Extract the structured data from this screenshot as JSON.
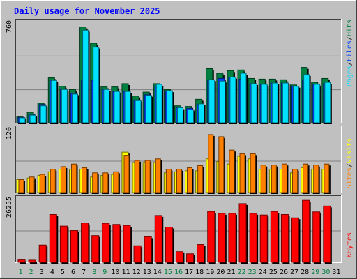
{
  "title": "Daily usage for November 2025",
  "colors": {
    "background": "#c0c0c0",
    "title": "#0000ff",
    "hits": "#008040",
    "files": "#0040ff",
    "pages": "#00e0ff",
    "visits": "#ffff00",
    "sites": "#ff8000",
    "kbytes": "#ff0000",
    "weekend_label": "#008040",
    "weekday_label": "#000000",
    "gridline": "#808080"
  },
  "chart_data": [
    {
      "type": "bar",
      "title": "Daily usage for November 2025",
      "ymax_label": "760",
      "ylim": [
        0,
        760
      ],
      "legend": [
        "Pages",
        "Files",
        "Hits"
      ],
      "series": [
        {
          "name": "Hits",
          "values": [
            45,
            80,
            150,
            345,
            280,
            255,
            735,
            610,
            275,
            275,
            300,
            205,
            235,
            300,
            255,
            130,
            125,
            180,
            415,
            380,
            400,
            405,
            340,
            335,
            335,
            330,
            290,
            425,
            310,
            340,
            0
          ]
        },
        {
          "name": "Files",
          "values": [
            40,
            60,
            140,
            325,
            260,
            225,
            325,
            325,
            255,
            240,
            240,
            175,
            215,
            280,
            245,
            115,
            110,
            140,
            330,
            340,
            350,
            335,
            300,
            295,
            305,
            305,
            280,
            330,
            295,
            300,
            0
          ]
        },
        {
          "name": "Pages",
          "values": [
            38,
            58,
            130,
            325,
            255,
            220,
            710,
            580,
            255,
            240,
            240,
            170,
            210,
            295,
            245,
            115,
            100,
            145,
            330,
            320,
            350,
            380,
            300,
            295,
            305,
            305,
            280,
            370,
            295,
            310,
            0
          ]
        }
      ],
      "categories": [
        "1",
        "2",
        "3",
        "4",
        "5",
        "6",
        "7",
        "8",
        "9",
        "10",
        "11",
        "12",
        "13",
        "14",
        "15",
        "16",
        "17",
        "18",
        "19",
        "20",
        "21",
        "22",
        "23",
        "24",
        "25",
        "26",
        "27",
        "28",
        "29",
        "30",
        "31"
      ]
    },
    {
      "type": "bar",
      "ymax_label": "120",
      "ylim": [
        0,
        120
      ],
      "legend": [
        "Sites",
        "Visits"
      ],
      "series": [
        {
          "name": "Visits",
          "values": [
            25,
            28,
            33,
            40,
            45,
            45,
            45,
            30,
            33,
            35,
            78,
            58,
            58,
            58,
            38,
            40,
            42,
            42,
            65,
            60,
            55,
            70,
            65,
            45,
            45,
            45,
            38,
            48,
            45,
            45,
            0
          ]
        },
        {
          "name": "Sites",
          "values": [
            25,
            30,
            35,
            45,
            50,
            55,
            48,
            38,
            38,
            40,
            72,
            62,
            62,
            65,
            45,
            45,
            48,
            52,
            112,
            108,
            82,
            75,
            75,
            53,
            53,
            55,
            45,
            55,
            53,
            55,
            0
          ]
        }
      ]
    },
    {
      "type": "bar",
      "ymax_label": "26255",
      "ylim": [
        0,
        26255
      ],
      "legend": [
        "KBytes"
      ],
      "series": [
        {
          "name": "KBytes",
          "values": [
            1000,
            900,
            7300,
            20200,
            15300,
            13400,
            16600,
            11300,
            16500,
            16000,
            15600,
            7000,
            10800,
            19800,
            14900,
            4500,
            3600,
            7500,
            21500,
            20700,
            20700,
            24800,
            20700,
            20000,
            21500,
            20200,
            18800,
            26200,
            21300,
            23800,
            0
          ]
        }
      ]
    }
  ]
}
